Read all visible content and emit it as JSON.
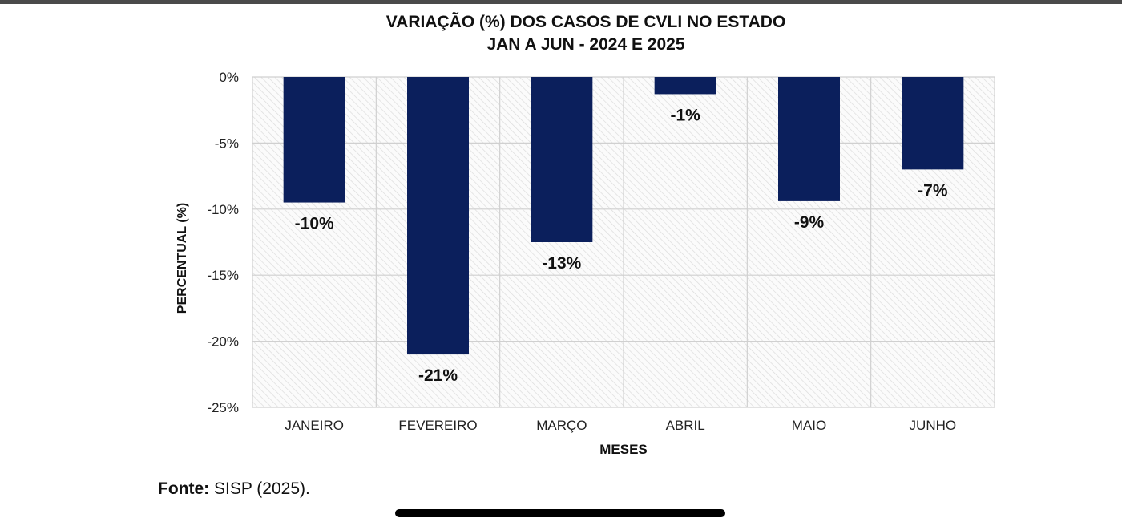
{
  "chart_data": {
    "type": "bar",
    "title_line1": "VARIAÇÃO (%) DOS CASOS DE CVLI NO ESTADO",
    "title_line2": "JAN A JUN - 2024 E 2025",
    "xlabel": "MESES",
    "ylabel": "PERCENTUAL (%)",
    "categories": [
      "JANEIRO",
      "FEVEREIRO",
      "MARÇO",
      "ABRIL",
      "MAIO",
      "JUNHO"
    ],
    "values": [
      -9.5,
      -21,
      -12.5,
      -1.3,
      -9.4,
      -7
    ],
    "data_labels": [
      "-10%",
      "-21%",
      "-13%",
      "-1%",
      "-9%",
      "-7%"
    ],
    "yticks": [
      0,
      -5,
      -10,
      -15,
      -20,
      -25
    ],
    "ytick_labels": [
      "0%",
      "-5%",
      "-10%",
      "-15%",
      "-20%",
      "-25%"
    ],
    "ylim": [
      -25,
      0
    ],
    "grid": true,
    "bar_color": "#0b1f5c",
    "background": "hatched light gray"
  },
  "footer": {
    "source_label": "Fonte:",
    "source_text": " SISP (2025)."
  }
}
